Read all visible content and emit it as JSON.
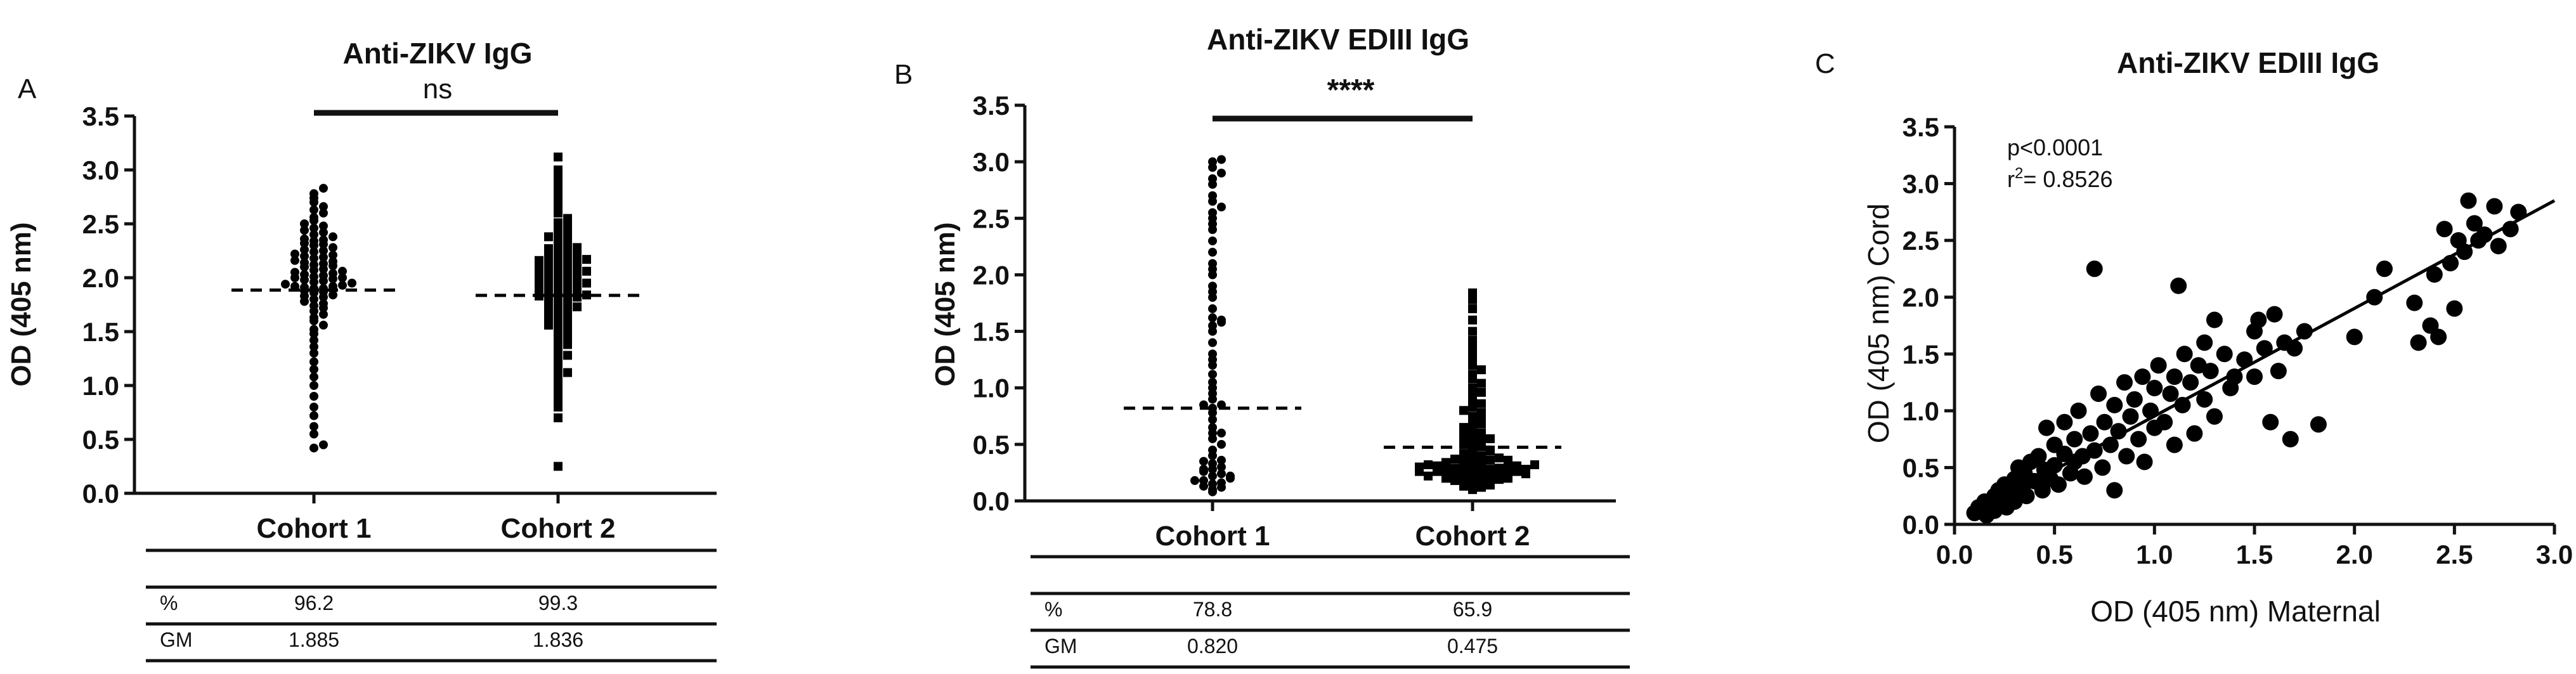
{
  "chart_data": [
    {
      "type": "scatter",
      "panel": "A",
      "title": "Anti-ZIKV IgG",
      "ylabel": "OD (405 nm)",
      "ylim": [
        0,
        3.5
      ],
      "yticks": [
        "0.0",
        "0.5",
        "1.0",
        "1.5",
        "2.0",
        "2.5",
        "3.0",
        "3.5"
      ],
      "categories": [
        "Cohort 1",
        "Cohort 2"
      ],
      "significance": "ns",
      "geometric_means": [
        1.885,
        1.836
      ],
      "marker_shapes": [
        "circle",
        "square"
      ],
      "series": [
        {
          "category": "Cohort 1",
          "values": [
            0.42,
            0.45,
            0.55,
            0.62,
            0.72,
            0.8,
            0.9,
            1.0,
            1.08,
            1.15,
            1.22,
            1.3,
            1.36,
            1.42,
            1.48,
            1.52,
            1.56,
            1.6,
            1.63,
            1.66,
            1.69,
            1.72,
            1.74,
            1.76,
            1.78,
            1.8,
            1.82,
            1.83,
            1.84,
            1.86,
            1.87,
            1.88,
            1.89,
            1.9,
            1.9,
            1.91,
            1.92,
            1.92,
            1.93,
            1.94,
            1.95,
            1.96,
            1.97,
            1.98,
            1.99,
            2.0,
            2.0,
            2.01,
            2.02,
            2.03,
            2.04,
            2.05,
            2.06,
            2.07,
            2.08,
            2.1,
            2.11,
            2.12,
            2.13,
            2.14,
            2.15,
            2.16,
            2.18,
            2.19,
            2.2,
            2.21,
            2.22,
            2.24,
            2.25,
            2.26,
            2.28,
            2.3,
            2.31,
            2.32,
            2.34,
            2.35,
            2.36,
            2.38,
            2.4,
            2.42,
            2.44,
            2.46,
            2.48,
            2.5,
            2.53,
            2.56,
            2.6,
            2.63,
            2.66,
            2.7,
            2.74,
            2.78,
            2.83
          ]
        },
        {
          "category": "Cohort 2",
          "values": [
            0.25,
            0.7,
            0.8,
            0.88,
            0.93,
            0.98,
            1.03,
            1.08,
            1.12,
            1.16,
            1.2,
            1.24,
            1.28,
            1.32,
            1.35,
            1.38,
            1.41,
            1.44,
            1.47,
            1.5,
            1.52,
            1.54,
            1.56,
            1.58,
            1.6,
            1.62,
            1.64,
            1.65,
            1.67,
            1.69,
            1.7,
            1.72,
            1.73,
            1.75,
            1.76,
            1.77,
            1.79,
            1.8,
            1.81,
            1.82,
            1.83,
            1.84,
            1.85,
            1.86,
            1.87,
            1.88,
            1.89,
            1.9,
            1.91,
            1.92,
            1.93,
            1.94,
            1.95,
            1.96,
            1.97,
            1.98,
            1.99,
            2.0,
            2.01,
            2.02,
            2.03,
            2.04,
            2.05,
            2.06,
            2.07,
            2.08,
            2.09,
            2.1,
            2.11,
            2.12,
            2.13,
            2.14,
            2.15,
            2.16,
            2.17,
            2.18,
            2.2,
            2.21,
            2.22,
            2.24,
            2.25,
            2.27,
            2.28,
            2.3,
            2.32,
            2.34,
            2.36,
            2.38,
            2.4,
            2.42,
            2.45,
            2.48,
            2.51,
            2.55,
            2.6,
            2.65,
            2.7,
            2.75,
            2.8,
            2.87,
            2.93,
            3.0,
            3.12
          ]
        }
      ],
      "table": {
        "rows": [
          {
            "label": "%",
            "values": [
              "96.2",
              "99.3"
            ]
          },
          {
            "label": "GM",
            "values": [
              "1.885",
              "1.836"
            ]
          }
        ]
      }
    },
    {
      "type": "scatter",
      "panel": "B",
      "title": "Anti-ZIKV EDIII IgG",
      "ylabel": "OD (405 nm)",
      "ylim": [
        0,
        3.5
      ],
      "yticks": [
        "0.0",
        "0.5",
        "1.0",
        "1.5",
        "2.0",
        "2.5",
        "3.0",
        "3.5"
      ],
      "categories": [
        "Cohort 1",
        "Cohort 2"
      ],
      "significance": "****",
      "geometric_means": [
        0.82,
        0.475
      ],
      "marker_shapes": [
        "circle",
        "square"
      ],
      "series": [
        {
          "category": "Cohort 1",
          "values": [
            0.08,
            0.1,
            0.12,
            0.13,
            0.15,
            0.16,
            0.18,
            0.2,
            0.22,
            0.24,
            0.26,
            0.28,
            0.3,
            0.33,
            0.36,
            0.4,
            0.45,
            0.5,
            0.55,
            0.6,
            0.65,
            0.72,
            0.78,
            0.82,
            0.85,
            0.9,
            0.95,
            1.0,
            1.05,
            1.12,
            1.2,
            1.3,
            1.4,
            1.5,
            1.55,
            1.58,
            1.62,
            1.7,
            1.8,
            1.85,
            1.9,
            2.0,
            2.1,
            2.2,
            2.3,
            2.4,
            2.5,
            2.55,
            2.6,
            2.65,
            2.7,
            2.8,
            2.85,
            2.9,
            2.95,
            3.0,
            3.02,
            0.18,
            0.22,
            0.28,
            0.35,
            0.6,
            0.85,
            1.25,
            1.6,
            2.05,
            2.45
          ]
        },
        {
          "category": "Cohort 2",
          "values": [
            0.1,
            0.12,
            0.13,
            0.14,
            0.15,
            0.16,
            0.17,
            0.18,
            0.18,
            0.19,
            0.2,
            0.2,
            0.21,
            0.22,
            0.22,
            0.23,
            0.24,
            0.24,
            0.25,
            0.25,
            0.26,
            0.26,
            0.27,
            0.27,
            0.28,
            0.28,
            0.29,
            0.29,
            0.3,
            0.3,
            0.31,
            0.31,
            0.32,
            0.33,
            0.34,
            0.35,
            0.36,
            0.37,
            0.38,
            0.39,
            0.4,
            0.42,
            0.44,
            0.46,
            0.48,
            0.5,
            0.52,
            0.54,
            0.56,
            0.58,
            0.6,
            0.62,
            0.65,
            0.68,
            0.7,
            0.72,
            0.75,
            0.78,
            0.8,
            0.83,
            0.86,
            0.9,
            0.93,
            0.96,
            1.0,
            1.04,
            1.08,
            1.12,
            1.16,
            1.2,
            1.25,
            1.3,
            1.35,
            1.42,
            1.5,
            1.6,
            1.7,
            1.78,
            1.84,
            0.22,
            0.24,
            0.26,
            0.28,
            0.3,
            0.32,
            0.34,
            0.36,
            0.45,
            0.55,
            0.65
          ]
        }
      ],
      "table": {
        "rows": [
          {
            "label": "%",
            "values": [
              "78.8",
              "65.9"
            ]
          },
          {
            "label": "GM",
            "values": [
              "0.820",
              "0.475"
            ]
          }
        ]
      }
    },
    {
      "type": "scatter",
      "panel": "C",
      "title": "Anti-ZIKV EDIII IgG",
      "xlabel": "OD (405 nm) Maternal",
      "ylabel": "OD (405 nm) Cord",
      "xlim": [
        0,
        3.0
      ],
      "ylim": [
        0,
        3.5
      ],
      "xticks": [
        "0.0",
        "0.5",
        "1.0",
        "1.5",
        "2.0",
        "2.5",
        "3.0"
      ],
      "yticks": [
        "0.0",
        "0.5",
        "1.0",
        "1.5",
        "2.0",
        "2.5",
        "3.0",
        "3.5"
      ],
      "annotation_p": "p<0.0001",
      "annotation_r2_prefix": "r",
      "annotation_r2_sup": "2",
      "annotation_r2_value": "= 0.8526",
      "fit_line": {
        "x": [
          0.1,
          3.0
        ],
        "y": [
          0.1,
          2.85
        ]
      },
      "points": [
        [
          0.1,
          0.1
        ],
        [
          0.12,
          0.15
        ],
        [
          0.14,
          0.12
        ],
        [
          0.15,
          0.2
        ],
        [
          0.16,
          0.08
        ],
        [
          0.18,
          0.18
        ],
        [
          0.2,
          0.25
        ],
        [
          0.2,
          0.12
        ],
        [
          0.22,
          0.3
        ],
        [
          0.24,
          0.22
        ],
        [
          0.25,
          0.35
        ],
        [
          0.26,
          0.15
        ],
        [
          0.28,
          0.28
        ],
        [
          0.3,
          0.4
        ],
        [
          0.3,
          0.2
        ],
        [
          0.32,
          0.5
        ],
        [
          0.34,
          0.32
        ],
        [
          0.35,
          0.45
        ],
        [
          0.36,
          0.25
        ],
        [
          0.38,
          0.55
        ],
        [
          0.4,
          0.38
        ],
        [
          0.42,
          0.6
        ],
        [
          0.44,
          0.3
        ],
        [
          0.45,
          0.48
        ],
        [
          0.46,
          0.85
        ],
        [
          0.48,
          0.4
        ],
        [
          0.5,
          0.7
        ],
        [
          0.5,
          0.52
        ],
        [
          0.52,
          0.35
        ],
        [
          0.55,
          0.62
        ],
        [
          0.55,
          0.9
        ],
        [
          0.58,
          0.45
        ],
        [
          0.6,
          0.75
        ],
        [
          0.6,
          0.55
        ],
        [
          0.62,
          1.0
        ],
        [
          0.64,
          0.6
        ],
        [
          0.65,
          0.42
        ],
        [
          0.68,
          0.8
        ],
        [
          0.7,
          2.25
        ],
        [
          0.7,
          0.65
        ],
        [
          0.72,
          1.15
        ],
        [
          0.74,
          0.5
        ],
        [
          0.75,
          0.9
        ],
        [
          0.78,
          0.7
        ],
        [
          0.8,
          1.05
        ],
        [
          0.8,
          0.3
        ],
        [
          0.82,
          0.82
        ],
        [
          0.85,
          1.25
        ],
        [
          0.86,
          0.6
        ],
        [
          0.88,
          0.95
        ],
        [
          0.9,
          1.1
        ],
        [
          0.92,
          0.75
        ],
        [
          0.94,
          1.3
        ],
        [
          0.95,
          0.55
        ],
        [
          0.98,
          1.0
        ],
        [
          1.0,
          1.2
        ],
        [
          1.0,
          0.85
        ],
        [
          1.02,
          1.4
        ],
        [
          1.05,
          0.9
        ],
        [
          1.08,
          1.15
        ],
        [
          1.1,
          1.3
        ],
        [
          1.1,
          0.7
        ],
        [
          1.12,
          2.1
        ],
        [
          1.14,
          1.05
        ],
        [
          1.15,
          1.5
        ],
        [
          1.18,
          1.25
        ],
        [
          1.2,
          0.8
        ],
        [
          1.22,
          1.4
        ],
        [
          1.25,
          1.6
        ],
        [
          1.25,
          1.1
        ],
        [
          1.28,
          1.35
        ],
        [
          1.3,
          1.8
        ],
        [
          1.3,
          0.95
        ],
        [
          1.35,
          1.5
        ],
        [
          1.38,
          1.2
        ],
        [
          1.4,
          1.3
        ],
        [
          1.45,
          1.45
        ],
        [
          1.5,
          1.7
        ],
        [
          1.5,
          1.3
        ],
        [
          1.52,
          1.8
        ],
        [
          1.55,
          1.55
        ],
        [
          1.58,
          0.9
        ],
        [
          1.6,
          1.85
        ],
        [
          1.62,
          1.35
        ],
        [
          1.65,
          1.6
        ],
        [
          1.68,
          0.75
        ],
        [
          1.7,
          1.55
        ],
        [
          1.75,
          1.7
        ],
        [
          1.82,
          0.88
        ],
        [
          2.0,
          1.65
        ],
        [
          2.1,
          2.0
        ],
        [
          2.15,
          2.25
        ],
        [
          2.3,
          1.95
        ],
        [
          2.32,
          1.6
        ],
        [
          2.38,
          1.75
        ],
        [
          2.4,
          2.2
        ],
        [
          2.42,
          1.65
        ],
        [
          2.45,
          2.6
        ],
        [
          2.48,
          2.3
        ],
        [
          2.5,
          1.9
        ],
        [
          2.52,
          2.5
        ],
        [
          2.55,
          2.4
        ],
        [
          2.57,
          2.85
        ],
        [
          2.6,
          2.65
        ],
        [
          2.62,
          2.5
        ],
        [
          2.65,
          2.55
        ],
        [
          2.7,
          2.8
        ],
        [
          2.72,
          2.45
        ],
        [
          2.78,
          2.6
        ],
        [
          2.82,
          2.75
        ]
      ]
    }
  ]
}
